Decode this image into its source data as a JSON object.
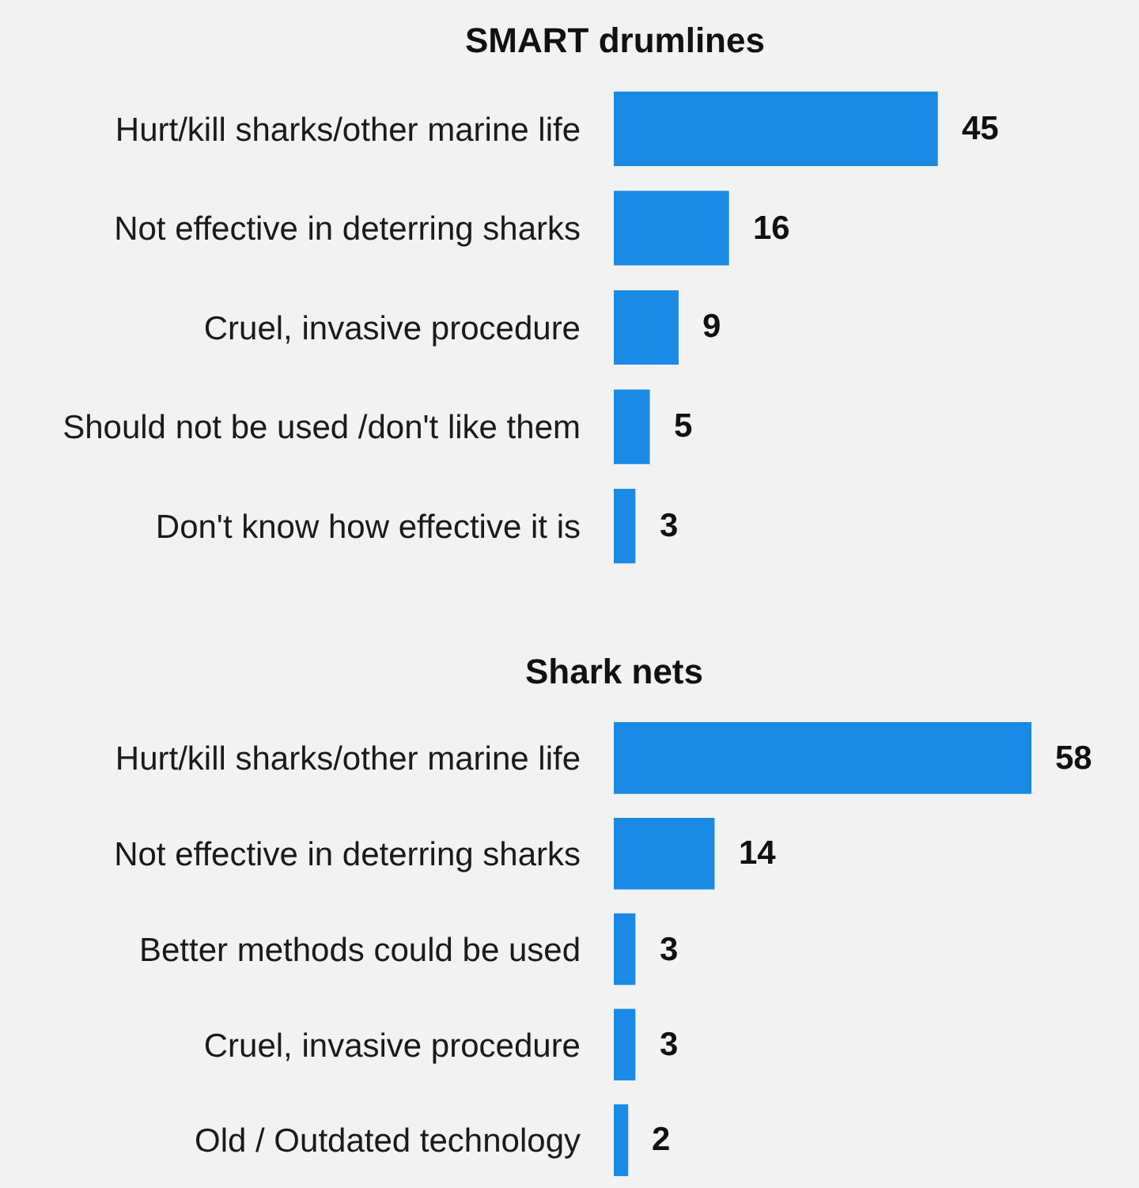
{
  "chart_data": [
    {
      "type": "bar",
      "orientation": "horizontal",
      "title": "SMART drumlines",
      "categories": [
        "Hurt/kill sharks/other marine life",
        "Not effective in deterring sharks",
        "Cruel, invasive procedure",
        "Should not be used /don't like them",
        "Don't know how effective it is"
      ],
      "values": [
        45,
        16,
        9,
        5,
        3
      ],
      "color": "#1a8ae5",
      "data_labels": true,
      "tick_labels": "y"
    },
    {
      "type": "bar",
      "orientation": "horizontal",
      "title": "Shark nets",
      "categories": [
        "Hurt/kill sharks/other marine life",
        "Not effective in deterring sharks",
        "Better methods could be used",
        "Cruel, invasive procedure",
        "Old / Outdated technology"
      ],
      "values": [
        58,
        14,
        3,
        3,
        2
      ],
      "color": "#1a8ae5",
      "data_labels": true,
      "tick_labels": "y"
    }
  ]
}
